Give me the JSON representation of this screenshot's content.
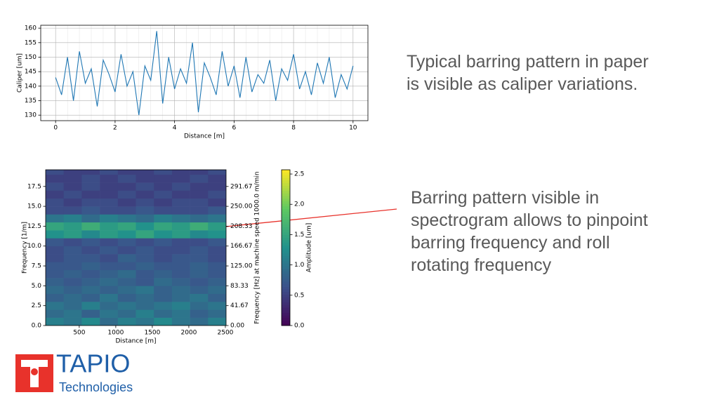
{
  "chart_data": [
    {
      "type": "line",
      "ylabel": "Caliper [um]",
      "xlabel": "Distance [m]",
      "color": "#1f77b4",
      "grid": true,
      "x": [
        0,
        0.2,
        0.4,
        0.6,
        0.8,
        1,
        1.2,
        1.4,
        1.6,
        1.8,
        2,
        2.2,
        2.4,
        2.6,
        2.8,
        3,
        3.2,
        3.4,
        3.6,
        3.8,
        4,
        4.2,
        4.4,
        4.6,
        4.8,
        5,
        5.2,
        5.4,
        5.6,
        5.8,
        6,
        6.2,
        6.4,
        6.6,
        6.8,
        7,
        7.2,
        7.4,
        7.6,
        7.8,
        8,
        8.2,
        8.4,
        8.6,
        8.8,
        9,
        9.2,
        9.4,
        9.6,
        9.8,
        10
      ],
      "values": [
        143,
        137,
        150,
        135,
        152,
        141,
        146,
        133,
        149,
        144,
        138,
        151,
        140,
        145,
        130,
        147,
        142,
        159,
        134,
        150,
        139,
        146,
        141,
        155,
        131,
        148,
        143,
        137,
        152,
        140,
        147,
        136,
        150,
        138,
        144,
        141,
        149,
        135,
        146,
        142,
        151,
        139,
        145,
        137,
        148,
        141,
        150,
        136,
        144,
        139,
        147
      ],
      "xlim": [
        -0.5,
        10.5
      ],
      "xticks": [
        0,
        2,
        4,
        6,
        8,
        10
      ],
      "ylim": [
        128.1,
        161
      ],
      "yticks": [
        130,
        135,
        140,
        145,
        150,
        155,
        160
      ]
    },
    {
      "type": "heatmap",
      "ylabel": "Frequency [1/m]",
      "xlabel": "Distance [m]",
      "y2label": "Frequency [Hz] at machine speed 1000.0 m/min",
      "colorbar_label": "Amplitude [um]",
      "colormap": [
        "#440154",
        "#3b528b",
        "#21918c",
        "#5ec962",
        "#fde725"
      ],
      "xbins": [
        40,
        287,
        534,
        781,
        1028,
        1275,
        1522,
        1769,
        2016,
        2263,
        2510
      ],
      "ybins": [
        0,
        1,
        2,
        3,
        4,
        5,
        6,
        7,
        8,
        9,
        10,
        11,
        12,
        13,
        14,
        15,
        16,
        17,
        18,
        19,
        20
      ],
      "values": [
        [
          1.1,
          1.0,
          1.2,
          0.9,
          1.1,
          1.0,
          1.2,
          1.0,
          0.9,
          1.1
        ],
        [
          0.9,
          1.0,
          0.8,
          1.0,
          0.9,
          1.1,
          0.9,
          1.0,
          0.8,
          0.9
        ],
        [
          1.0,
          0.9,
          1.1,
          0.9,
          1.0,
          0.9,
          1.0,
          1.1,
          0.9,
          1.0
        ],
        [
          0.8,
          0.9,
          0.8,
          1.0,
          0.8,
          0.9,
          0.8,
          0.9,
          1.0,
          0.8
        ],
        [
          0.9,
          0.8,
          0.9,
          0.8,
          0.9,
          1.0,
          0.8,
          0.9,
          0.8,
          0.9
        ],
        [
          0.8,
          0.7,
          0.8,
          0.9,
          0.8,
          0.7,
          0.9,
          0.8,
          0.7,
          0.8
        ],
        [
          0.7,
          0.8,
          0.7,
          0.8,
          0.9,
          0.7,
          0.8,
          0.7,
          0.8,
          0.7
        ],
        [
          0.7,
          0.7,
          0.8,
          0.7,
          0.7,
          0.8,
          0.7,
          0.7,
          0.8,
          0.7
        ],
        [
          0.6,
          0.7,
          0.7,
          0.6,
          0.8,
          0.7,
          0.6,
          0.7,
          0.7,
          0.6
        ],
        [
          0.6,
          0.7,
          0.6,
          0.7,
          0.6,
          0.7,
          0.6,
          0.6,
          0.7,
          0.6
        ],
        [
          0.7,
          0.6,
          0.7,
          0.6,
          0.7,
          0.6,
          0.7,
          0.6,
          0.6,
          0.7
        ],
        [
          1.3,
          1.4,
          1.2,
          1.4,
          1.3,
          1.5,
          1.3,
          1.4,
          1.2,
          1.3
        ],
        [
          1.5,
          1.4,
          1.6,
          1.4,
          1.5,
          1.3,
          1.5,
          1.4,
          1.6,
          1.4
        ],
        [
          1.0,
          1.1,
          0.9,
          1.1,
          1.0,
          0.9,
          1.1,
          1.0,
          0.9,
          1.0
        ],
        [
          0.6,
          0.6,
          0.7,
          0.6,
          0.6,
          0.7,
          0.6,
          0.6,
          0.6,
          0.7
        ],
        [
          0.6,
          0.5,
          0.6,
          0.6,
          0.5,
          0.6,
          0.5,
          0.6,
          0.6,
          0.5
        ],
        [
          0.5,
          0.6,
          0.5,
          0.5,
          0.6,
          0.5,
          0.6,
          0.5,
          0.5,
          0.6
        ],
        [
          0.6,
          0.5,
          0.6,
          0.5,
          0.5,
          0.6,
          0.5,
          0.6,
          0.5,
          0.5
        ],
        [
          0.5,
          0.5,
          0.6,
          0.5,
          0.6,
          0.5,
          0.5,
          0.5,
          0.6,
          0.5
        ],
        [
          0.6,
          0.5,
          0.5,
          0.6,
          0.5,
          0.5,
          0.6,
          0.5,
          0.5,
          0.6
        ]
      ],
      "xlim": [
        40,
        2510
      ],
      "xticks": [
        500,
        1000,
        1500,
        2000,
        2500
      ],
      "ylim": [
        0,
        19.6
      ],
      "yticks": [
        {
          "value": 0,
          "label": "0.0"
        },
        2.5,
        {
          "value": 5,
          "label": "5.0"
        },
        7.5,
        {
          "value": 10,
          "label": "10.0"
        },
        12.5,
        {
          "value": 15,
          "label": "15.0"
        },
        17.5
      ],
      "y2lim": [
        0,
        326.67
      ],
      "y2ticks": [
        {
          "value": 0,
          "label": "0.00"
        },
        41.67,
        83.33,
        {
          "value": 125,
          "label": "125.00"
        },
        166.67,
        208.33,
        {
          "value": 250,
          "label": "250.00"
        },
        291.67
      ],
      "clim": [
        0,
        2.57
      ],
      "cticks": [
        {
          "value": 0,
          "label": "0.0"
        },
        0.5,
        {
          "value": 1,
          "label": "1.0"
        },
        1.5,
        {
          "value": 2,
          "label": "2.0"
        },
        2.5
      ]
    }
  ],
  "notes": [
    [
      "Typical barring pattern in paper",
      "is visible as caliper variations."
    ],
    [
      "Barring pattern visible in",
      "spectrogram allows to pinpoint",
      "barring frequency and roll",
      "rotating frequency"
    ]
  ],
  "logo": {
    "name": "TAPIO",
    "subtitle": "Technologies"
  }
}
